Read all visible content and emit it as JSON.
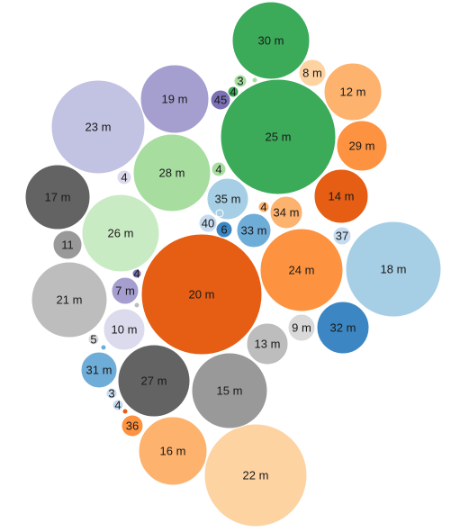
{
  "chart_data": {
    "type": "bubble-pack",
    "title": "",
    "colors": {
      "darkgreen": "#3bab5a",
      "lightgreen": "#a7dea0",
      "palegreen": "#c9ebc3",
      "darkpurple": "#7b72b5",
      "purple": "#a59fcf",
      "lightpurple": "#c2c2e2",
      "palepurple": "#dcdbee",
      "darkgray": "#636363",
      "gray": "#999999",
      "lightgray": "#bdbdbd",
      "palegray": "#d9d9d9",
      "darkorange": "#e55e13",
      "orange": "#fd9340",
      "lightorange": "#fdb26d",
      "paleorange": "#fdd3a2",
      "darkblue": "#3c87c3",
      "blue": "#6fadd9",
      "lightblue": "#a6cfe5",
      "paleblue": "#c6dbef"
    },
    "bubbles": [
      {
        "label": "20 m",
        "color": "darkorange"
      },
      {
        "label": "25 m",
        "color": "darkgreen"
      },
      {
        "label": "18 m",
        "color": "lightblue"
      },
      {
        "label": "22 m",
        "color": "paleorange"
      },
      {
        "label": "23 m",
        "color": "lightpurple"
      },
      {
        "label": "30 m",
        "color": "darkgreen"
      },
      {
        "label": "24 m",
        "color": "orange"
      },
      {
        "label": "26 m",
        "color": "palegreen"
      },
      {
        "label": "28 m",
        "color": "lightgreen"
      },
      {
        "label": "15 m",
        "color": "gray"
      },
      {
        "label": "27 m",
        "color": "darkgray"
      },
      {
        "label": "21 m",
        "color": "lightgray"
      },
      {
        "label": "16 m",
        "color": "lightorange"
      },
      {
        "label": "19 m",
        "color": "purple"
      },
      {
        "label": "17 m",
        "color": "darkgray"
      },
      {
        "label": "12 m",
        "color": "lightorange"
      },
      {
        "label": "14 m",
        "color": "darkorange"
      },
      {
        "label": "32 m",
        "color": "darkblue"
      },
      {
        "label": "29 m",
        "color": "orange"
      },
      {
        "label": "13 m",
        "color": "lightgray"
      },
      {
        "label": "35 m",
        "color": "lightblue"
      },
      {
        "label": "10 m",
        "color": "palepurple"
      },
      {
        "label": "31 m",
        "color": "blue"
      },
      {
        "label": "33 m",
        "color": "blue"
      },
      {
        "label": "34 m",
        "color": "lightorange"
      },
      {
        "label": "9 m",
        "color": "palegray"
      },
      {
        "label": "8 m",
        "color": "paleorange"
      },
      {
        "label": "7 m",
        "color": "purple"
      },
      {
        "label": "11",
        "color": "gray"
      },
      {
        "label": "45",
        "color": "darkpurple"
      },
      {
        "label": "36",
        "color": "orange"
      },
      {
        "label": "40",
        "color": "paleblue"
      },
      {
        "label": "37",
        "color": "paleblue"
      },
      {
        "label": "6",
        "color": "darkblue"
      },
      {
        "label": "4",
        "color": "lightgreen"
      },
      {
        "label": "4",
        "color": "palepurple"
      },
      {
        "label": "3",
        "color": "lightgreen"
      },
      {
        "label": "4",
        "color": "darkgreen"
      },
      {
        "label": "4",
        "color": "lightorange"
      },
      {
        "label": "4",
        "color": "darkpurple"
      },
      {
        "label": "5",
        "color": "palegray"
      },
      {
        "label": "3",
        "color": "paleblue"
      },
      {
        "label": "4",
        "color": "paleblue"
      },
      {
        "label": "",
        "color": "lightgreen"
      },
      {
        "label": "",
        "color": "lightblue"
      },
      {
        "label": "",
        "color": "lightgray"
      },
      {
        "label": "",
        "color": "blue"
      },
      {
        "label": "",
        "color": "darkorange"
      }
    ]
  }
}
